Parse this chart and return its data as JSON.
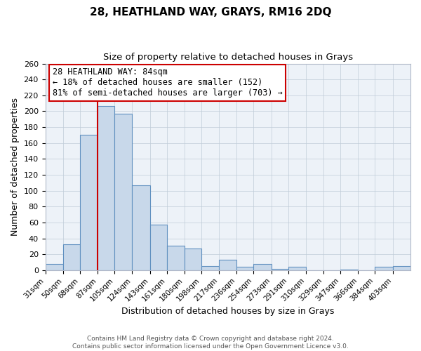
{
  "title": "28, HEATHLAND WAY, GRAYS, RM16 2DQ",
  "subtitle": "Size of property relative to detached houses in Grays",
  "xlabel": "Distribution of detached houses by size in Grays",
  "ylabel": "Number of detached properties",
  "bin_labels": [
    "31sqm",
    "50sqm",
    "68sqm",
    "87sqm",
    "105sqm",
    "124sqm",
    "143sqm",
    "161sqm",
    "180sqm",
    "198sqm",
    "217sqm",
    "236sqm",
    "254sqm",
    "273sqm",
    "291sqm",
    "310sqm",
    "329sqm",
    "347sqm",
    "366sqm",
    "384sqm",
    "403sqm"
  ],
  "bar_values": [
    8,
    33,
    170,
    207,
    197,
    107,
    57,
    31,
    27,
    5,
    13,
    4,
    8,
    2,
    4,
    0,
    0,
    1,
    0,
    4,
    5
  ],
  "bar_color": "#c8d8ea",
  "bar_edge_color": "#6090c0",
  "vline_x_idx": 3,
  "vline_color": "#cc0000",
  "ylim": [
    0,
    260
  ],
  "yticks": [
    0,
    20,
    40,
    60,
    80,
    100,
    120,
    140,
    160,
    180,
    200,
    220,
    240,
    260
  ],
  "bin_edges": [
    31,
    50,
    68,
    87,
    105,
    124,
    143,
    161,
    180,
    198,
    217,
    236,
    254,
    273,
    291,
    310,
    329,
    347,
    366,
    384,
    403,
    422
  ],
  "annotation_title": "28 HEATHLAND WAY: 84sqm",
  "annotation_line1": "← 18% of detached houses are smaller (152)",
  "annotation_line2": "81% of semi-detached houses are larger (703) →",
  "annotation_box_color": "#ffffff",
  "annotation_box_edge": "#cc0000",
  "footer1": "Contains HM Land Registry data © Crown copyright and database right 2024.",
  "footer2": "Contains public sector information licensed under the Open Government Licence v3.0.",
  "background_color": "#edf2f8",
  "plot_background": "#ffffff",
  "grid_color": "#c0ccd8",
  "title_fontsize": 11,
  "subtitle_fontsize": 9.5
}
